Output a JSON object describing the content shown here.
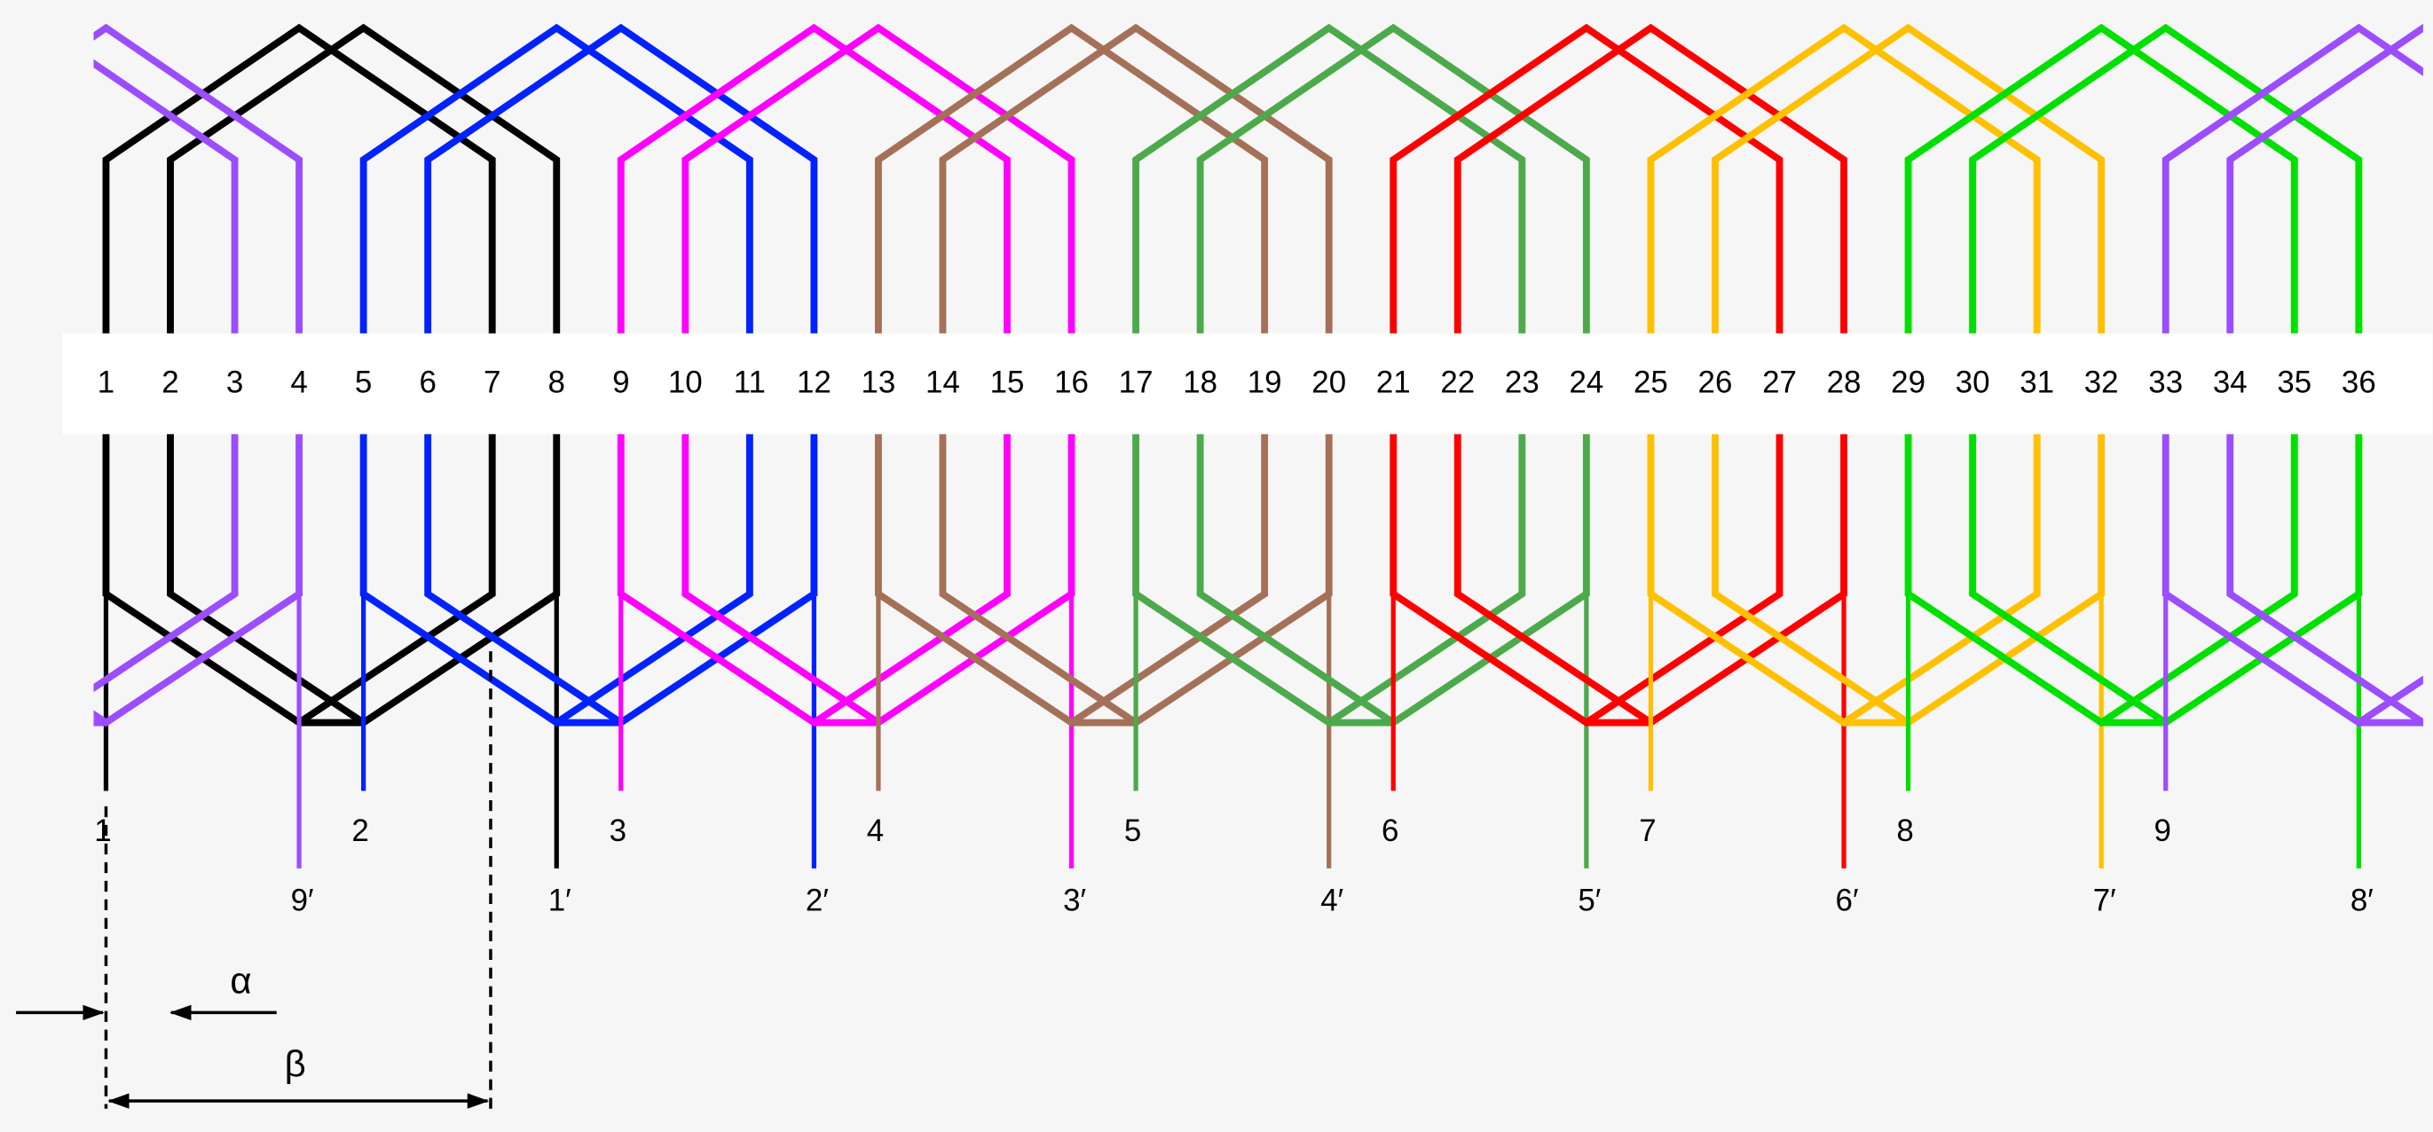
{
  "slots": [
    "1",
    "2",
    "3",
    "4",
    "5",
    "6",
    "7",
    "8",
    "9",
    "10",
    "11",
    "12",
    "13",
    "14",
    "15",
    "16",
    "17",
    "18",
    "19",
    "20",
    "21",
    "22",
    "23",
    "24",
    "25",
    "26",
    "27",
    "28",
    "29",
    "30",
    "31",
    "32",
    "33",
    "34",
    "35",
    "36"
  ],
  "groups": [
    {
      "color": "#000000",
      "start_label": "1",
      "end_label": "1′"
    },
    {
      "color": "#0022ff",
      "start_label": "2",
      "end_label": "2′"
    },
    {
      "color": "#ff00ff",
      "start_label": "3",
      "end_label": "3′"
    },
    {
      "color": "#a47158",
      "start_label": "4",
      "end_label": "4′"
    },
    {
      "color": "#4caa4c",
      "start_label": "5",
      "end_label": "5′"
    },
    {
      "color": "#ff0000",
      "start_label": "6",
      "end_label": "6′"
    },
    {
      "color": "#ffc000",
      "start_label": "7",
      "end_label": "7′"
    },
    {
      "color": "#00e000",
      "start_label": "8",
      "end_label": "8′"
    },
    {
      "color": "#9b4dff",
      "start_label": "9",
      "end_label": "9′"
    }
  ],
  "alpha_label": "α",
  "beta_label": "β"
}
